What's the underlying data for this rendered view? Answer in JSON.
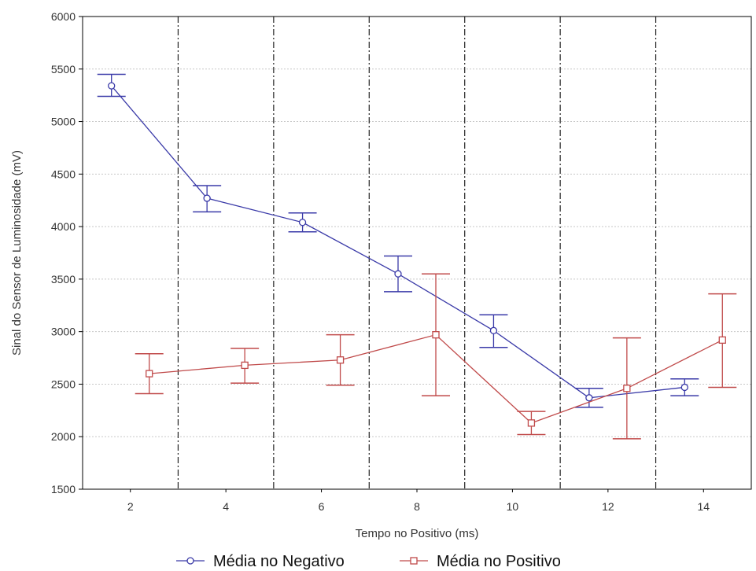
{
  "chart_data": {
    "type": "line",
    "xlabel": "Tempo no Positivo (ms)",
    "ylabel": "Sinal do Sensor de Luminosidade (mV)",
    "categories": [
      "2",
      "4",
      "6",
      "8",
      "10",
      "12",
      "14"
    ],
    "ylim": [
      1500,
      6000
    ],
    "yticks": [
      1500,
      2000,
      2500,
      3000,
      3500,
      4000,
      4500,
      5000,
      5500,
      6000
    ],
    "grid": "horizontal dotted lines; vertical dash-dot separators between categories",
    "legend_position": "bottom",
    "series": [
      {
        "name": "Média no Negativo",
        "color": "#3a3aa8",
        "marker": "circle",
        "values": [
          5340,
          4270,
          4040,
          3550,
          3010,
          2370,
          2470
        ],
        "error_low": [
          5240,
          4140,
          3950,
          3380,
          2850,
          2280,
          2390
        ],
        "error_high": [
          5450,
          4390,
          4130,
          3720,
          3160,
          2460,
          2550
        ]
      },
      {
        "name": "Média no Positivo",
        "color": "#c04a4a",
        "marker": "square",
        "values": [
          2600,
          2680,
          2730,
          2970,
          2130,
          2460,
          2920
        ],
        "error_low": [
          2410,
          2510,
          2490,
          2390,
          2020,
          1980,
          2470
        ],
        "error_high": [
          2790,
          2840,
          2970,
          3550,
          2240,
          2940,
          3360
        ]
      }
    ]
  }
}
